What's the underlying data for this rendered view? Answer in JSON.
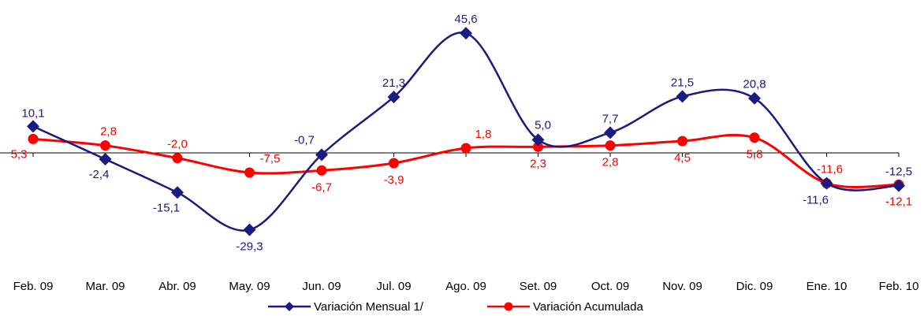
{
  "chart_data": {
    "type": "line",
    "title": "",
    "xlabel": "",
    "ylabel": "",
    "categories": [
      "Feb. 09",
      "Mar. 09",
      "Abr. 09",
      "May. 09",
      "Jun. 09",
      "Jul. 09",
      "Ago. 09",
      "Set. 09",
      "Oct. 09",
      "Nov. 09",
      "Dic. 09",
      "Ene. 10",
      "Feb. 10"
    ],
    "ylim": [
      -35,
      50
    ],
    "grid": false,
    "legend_position": "bottom",
    "series": [
      {
        "name": "Variación Mensual 1/",
        "color": "#1a1a80",
        "marker": "diamond",
        "values": [
          10.1,
          -2.4,
          -15.1,
          -29.3,
          -0.7,
          21.3,
          45.6,
          5.0,
          7.7,
          21.5,
          20.8,
          -11.6,
          -12.5
        ],
        "labels": [
          "10,1",
          "-2,4",
          "-15,1",
          "-29,3",
          "-0,7",
          "21,3",
          "45,6",
          "5,0",
          "7,7",
          "21,5",
          "20,8",
          "-11,6",
          "-12,5"
        ]
      },
      {
        "name": "Variación Acumulada",
        "color": "#ff0000",
        "marker": "circle",
        "values": [
          5.3,
          2.8,
          -2.0,
          -7.5,
          -6.7,
          -3.9,
          1.8,
          2.3,
          2.8,
          4.5,
          5.8,
          -11.6,
          -12.1
        ],
        "labels": [
          "5,3",
          "2,8",
          "-2,0",
          "-7,5",
          "-6,7",
          "-3,9",
          "1,8",
          "2,3",
          "2,8",
          "4,5",
          "5,8",
          "-11,6",
          "-12,1"
        ]
      }
    ]
  }
}
